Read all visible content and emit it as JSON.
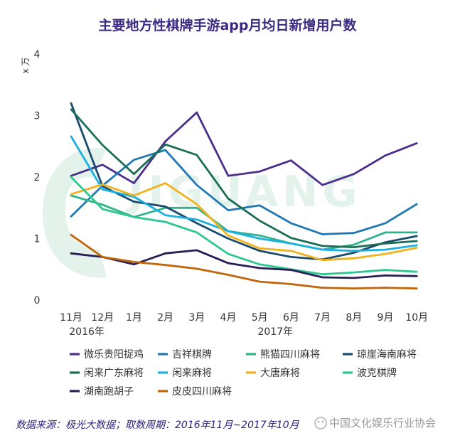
{
  "source_note": "数据来源：极光大数据；取数周期：2016年11月~2017年10月",
  "watermark_text": "中国文化娱乐行业协会",
  "chart_data": {
    "type": "line",
    "title": "主要地方性棋牌手游app月均日新增用户数",
    "ylabel": "x 万",
    "ylim": [
      0,
      4
    ],
    "yticks": [
      "0",
      "1",
      "2",
      "3",
      "4"
    ],
    "grid": false,
    "legend_position": "bottom",
    "categories": [
      "11月",
      "12月",
      "1月",
      "2月",
      "3月",
      "4月",
      "5月",
      "6月",
      "7月",
      "8月",
      "9月",
      "10月"
    ],
    "year_labels": [
      {
        "text": "2016年",
        "index": 0.5
      },
      {
        "text": "2017年",
        "index": 6.5
      }
    ],
    "series": [
      {
        "name": "微乐贵阳捉鸡",
        "color": "#4b2d8c",
        "values": [
          2.02,
          2.2,
          1.9,
          2.58,
          3.05,
          2.02,
          2.09,
          2.27,
          1.87,
          2.05,
          2.35,
          2.55
        ]
      },
      {
        "name": "吉祥棋牌",
        "color": "#1f78b4",
        "values": [
          1.36,
          1.86,
          2.28,
          2.44,
          1.87,
          1.46,
          1.54,
          1.25,
          1.07,
          1.09,
          1.25,
          1.56
        ]
      },
      {
        "name": "熊猫四川麻将",
        "color": "#30b38d",
        "values": [
          1.7,
          1.55,
          1.35,
          1.5,
          1.5,
          1.12,
          1.05,
          0.92,
          0.82,
          0.9,
          1.1,
          1.1
        ]
      },
      {
        "name": "琼崖海南麻将",
        "color": "#1a4a6e",
        "values": [
          3.2,
          1.85,
          1.6,
          1.52,
          1.25,
          1.0,
          0.8,
          0.7,
          0.66,
          0.77,
          0.94,
          1.04
        ]
      },
      {
        "name": "闲来广东麻将",
        "color": "#1a6e56",
        "values": [
          3.1,
          2.52,
          2.05,
          2.53,
          2.36,
          1.65,
          1.29,
          1.01,
          0.88,
          0.86,
          0.92,
          0.96
        ]
      },
      {
        "name": "闲来麻将",
        "color": "#1bb0e0",
        "values": [
          2.66,
          1.8,
          1.68,
          1.38,
          1.31,
          1.12,
          1.0,
          0.92,
          0.82,
          0.8,
          0.82,
          0.89
        ]
      },
      {
        "name": "大唐麻将",
        "color": "#f0b21e",
        "values": [
          1.72,
          1.88,
          1.7,
          1.9,
          1.56,
          1.05,
          0.84,
          0.8,
          0.65,
          0.68,
          0.75,
          0.85
        ]
      },
      {
        "name": "波克棋牌",
        "color": "#2cc78f",
        "values": [
          2.0,
          1.48,
          1.35,
          1.27,
          1.1,
          0.75,
          0.58,
          0.5,
          0.42,
          0.45,
          0.49,
          0.46
        ]
      },
      {
        "name": "湖南跑胡子",
        "color": "#2a1e55",
        "values": [
          0.76,
          0.7,
          0.58,
          0.76,
          0.81,
          0.6,
          0.52,
          0.49,
          0.37,
          0.36,
          0.4,
          0.39
        ]
      },
      {
        "name": "皮皮四川麻将",
        "color": "#c0650a",
        "values": [
          1.06,
          0.7,
          0.62,
          0.57,
          0.51,
          0.41,
          0.3,
          0.26,
          0.2,
          0.19,
          0.2,
          0.19
        ]
      }
    ]
  }
}
